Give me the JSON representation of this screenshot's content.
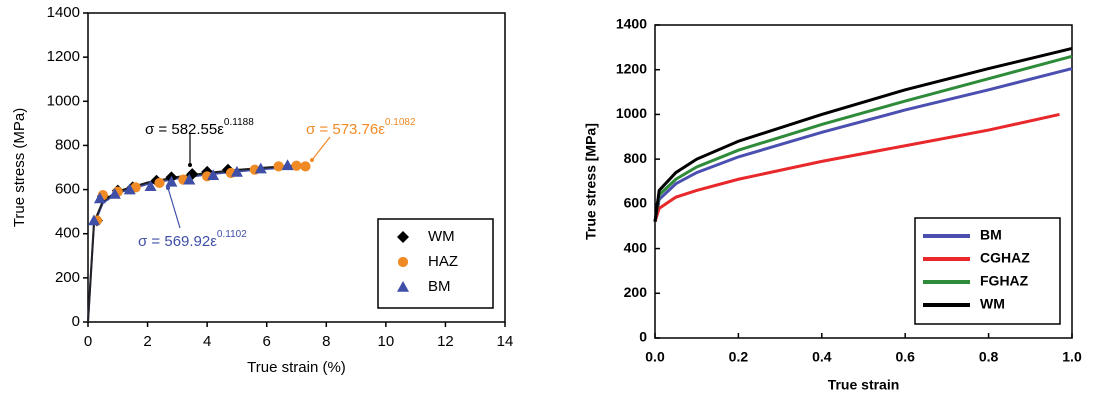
{
  "chart_data": [
    {
      "type": "scatter",
      "xlabel": "True strain (%)",
      "ylabel": "True stress (MPa)",
      "xlim": [
        0,
        14
      ],
      "xticks": [
        0,
        2,
        4,
        6,
        8,
        10,
        12,
        14
      ],
      "ylim": [
        0,
        1400
      ],
      "yticks": [
        0,
        200,
        400,
        600,
        800,
        1000,
        1200,
        1400
      ],
      "legend": "lower right",
      "series": [
        {
          "name": "WM",
          "color": "#000000",
          "marker": "diamond",
          "x": [
            0.3,
            0.5,
            1.0,
            1.5,
            2.3,
            2.8,
            3.5,
            4.0,
            4.7
          ],
          "values": [
            460,
            570,
            595,
            610,
            640,
            655,
            670,
            680,
            690
          ]
        },
        {
          "name": "HAZ",
          "color": "#f08a24",
          "marker": "circle",
          "x": [
            0.3,
            0.5,
            1.0,
            1.6,
            2.4,
            3.2,
            4.0,
            4.8,
            5.6,
            6.4,
            7.0,
            7.3
          ],
          "values": [
            460,
            575,
            590,
            610,
            630,
            645,
            660,
            675,
            690,
            705,
            708,
            705
          ]
        },
        {
          "name": "BM",
          "color": "#3f4fa8",
          "marker": "triangle",
          "x": [
            0.2,
            0.4,
            0.9,
            1.4,
            2.1,
            2.8,
            3.4,
            4.2,
            5.0,
            5.8,
            6.7
          ],
          "values": [
            460,
            560,
            580,
            600,
            615,
            635,
            645,
            665,
            680,
            695,
            710
          ]
        }
      ],
      "curves": [
        {
          "color": "#3f4fa8",
          "x": [
            0,
            0.2,
            0.5,
            1,
            2,
            3,
            4,
            5,
            6,
            7,
            7.3
          ],
          "values": [
            0,
            440,
            540,
            585,
            625,
            650,
            668,
            682,
            694,
            703,
            706
          ]
        },
        {
          "color": "#222222",
          "x": [
            0,
            0.2,
            0.5,
            1,
            2,
            3,
            4,
            5,
            6,
            7,
            7.3
          ],
          "values": [
            0,
            450,
            548,
            592,
            632,
            657,
            675,
            689,
            700,
            709,
            711
          ]
        }
      ],
      "annotations": [
        {
          "text": "σ = 582.55ε",
          "sup": "0.1188",
          "color": "#000000"
        },
        {
          "text": "σ = 573.76ε",
          "sup": "0.1082",
          "color": "#f08a24"
        },
        {
          "text": "σ = 569.92ε",
          "sup": "0.1102",
          "color": "#3f4fa8"
        }
      ]
    },
    {
      "type": "line",
      "xlabel": "True strain",
      "ylabel": "True stress [MPa]",
      "xlim": [
        0,
        1
      ],
      "xticks": [
        {
          "value": 0,
          "label": "0.0"
        },
        {
          "value": 0.2,
          "label": "0.2"
        },
        {
          "value": 0.4,
          "label": "0.4"
        },
        {
          "value": 0.6,
          "label": "0.6"
        },
        {
          "value": 0.8,
          "label": "0.8"
        },
        {
          "value": 1,
          "label": "1.0"
        }
      ],
      "ylim": [
        0,
        1400
      ],
      "yticks": [
        0,
        200,
        400,
        600,
        800,
        1000,
        1200,
        1400
      ],
      "legend": "lower right",
      "series": [
        {
          "name": "BM",
          "color": "#4a4fb0",
          "x": [
            0,
            0.01,
            0.05,
            0.1,
            0.2,
            0.4,
            0.6,
            0.8,
            1.0
          ],
          "values": [
            520,
            620,
            690,
            740,
            810,
            920,
            1020,
            1110,
            1205
          ]
        },
        {
          "name": "CGHAZ",
          "color": "#e8282b",
          "x": [
            0,
            0.01,
            0.05,
            0.1,
            0.2,
            0.4,
            0.6,
            0.8,
            0.97
          ],
          "values": [
            520,
            580,
            630,
            660,
            710,
            790,
            860,
            930,
            1000
          ]
        },
        {
          "name": "FGHAZ",
          "color": "#2e8b3a",
          "x": [
            0,
            0.01,
            0.05,
            0.1,
            0.2,
            0.4,
            0.6,
            0.8,
            1.0
          ],
          "values": [
            520,
            640,
            710,
            765,
            840,
            955,
            1060,
            1160,
            1260
          ]
        },
        {
          "name": "WM",
          "color": "#000000",
          "x": [
            0,
            0.01,
            0.05,
            0.1,
            0.2,
            0.4,
            0.6,
            0.8,
            1.0
          ],
          "values": [
            520,
            660,
            740,
            800,
            880,
            1000,
            1110,
            1205,
            1295
          ]
        }
      ]
    }
  ]
}
